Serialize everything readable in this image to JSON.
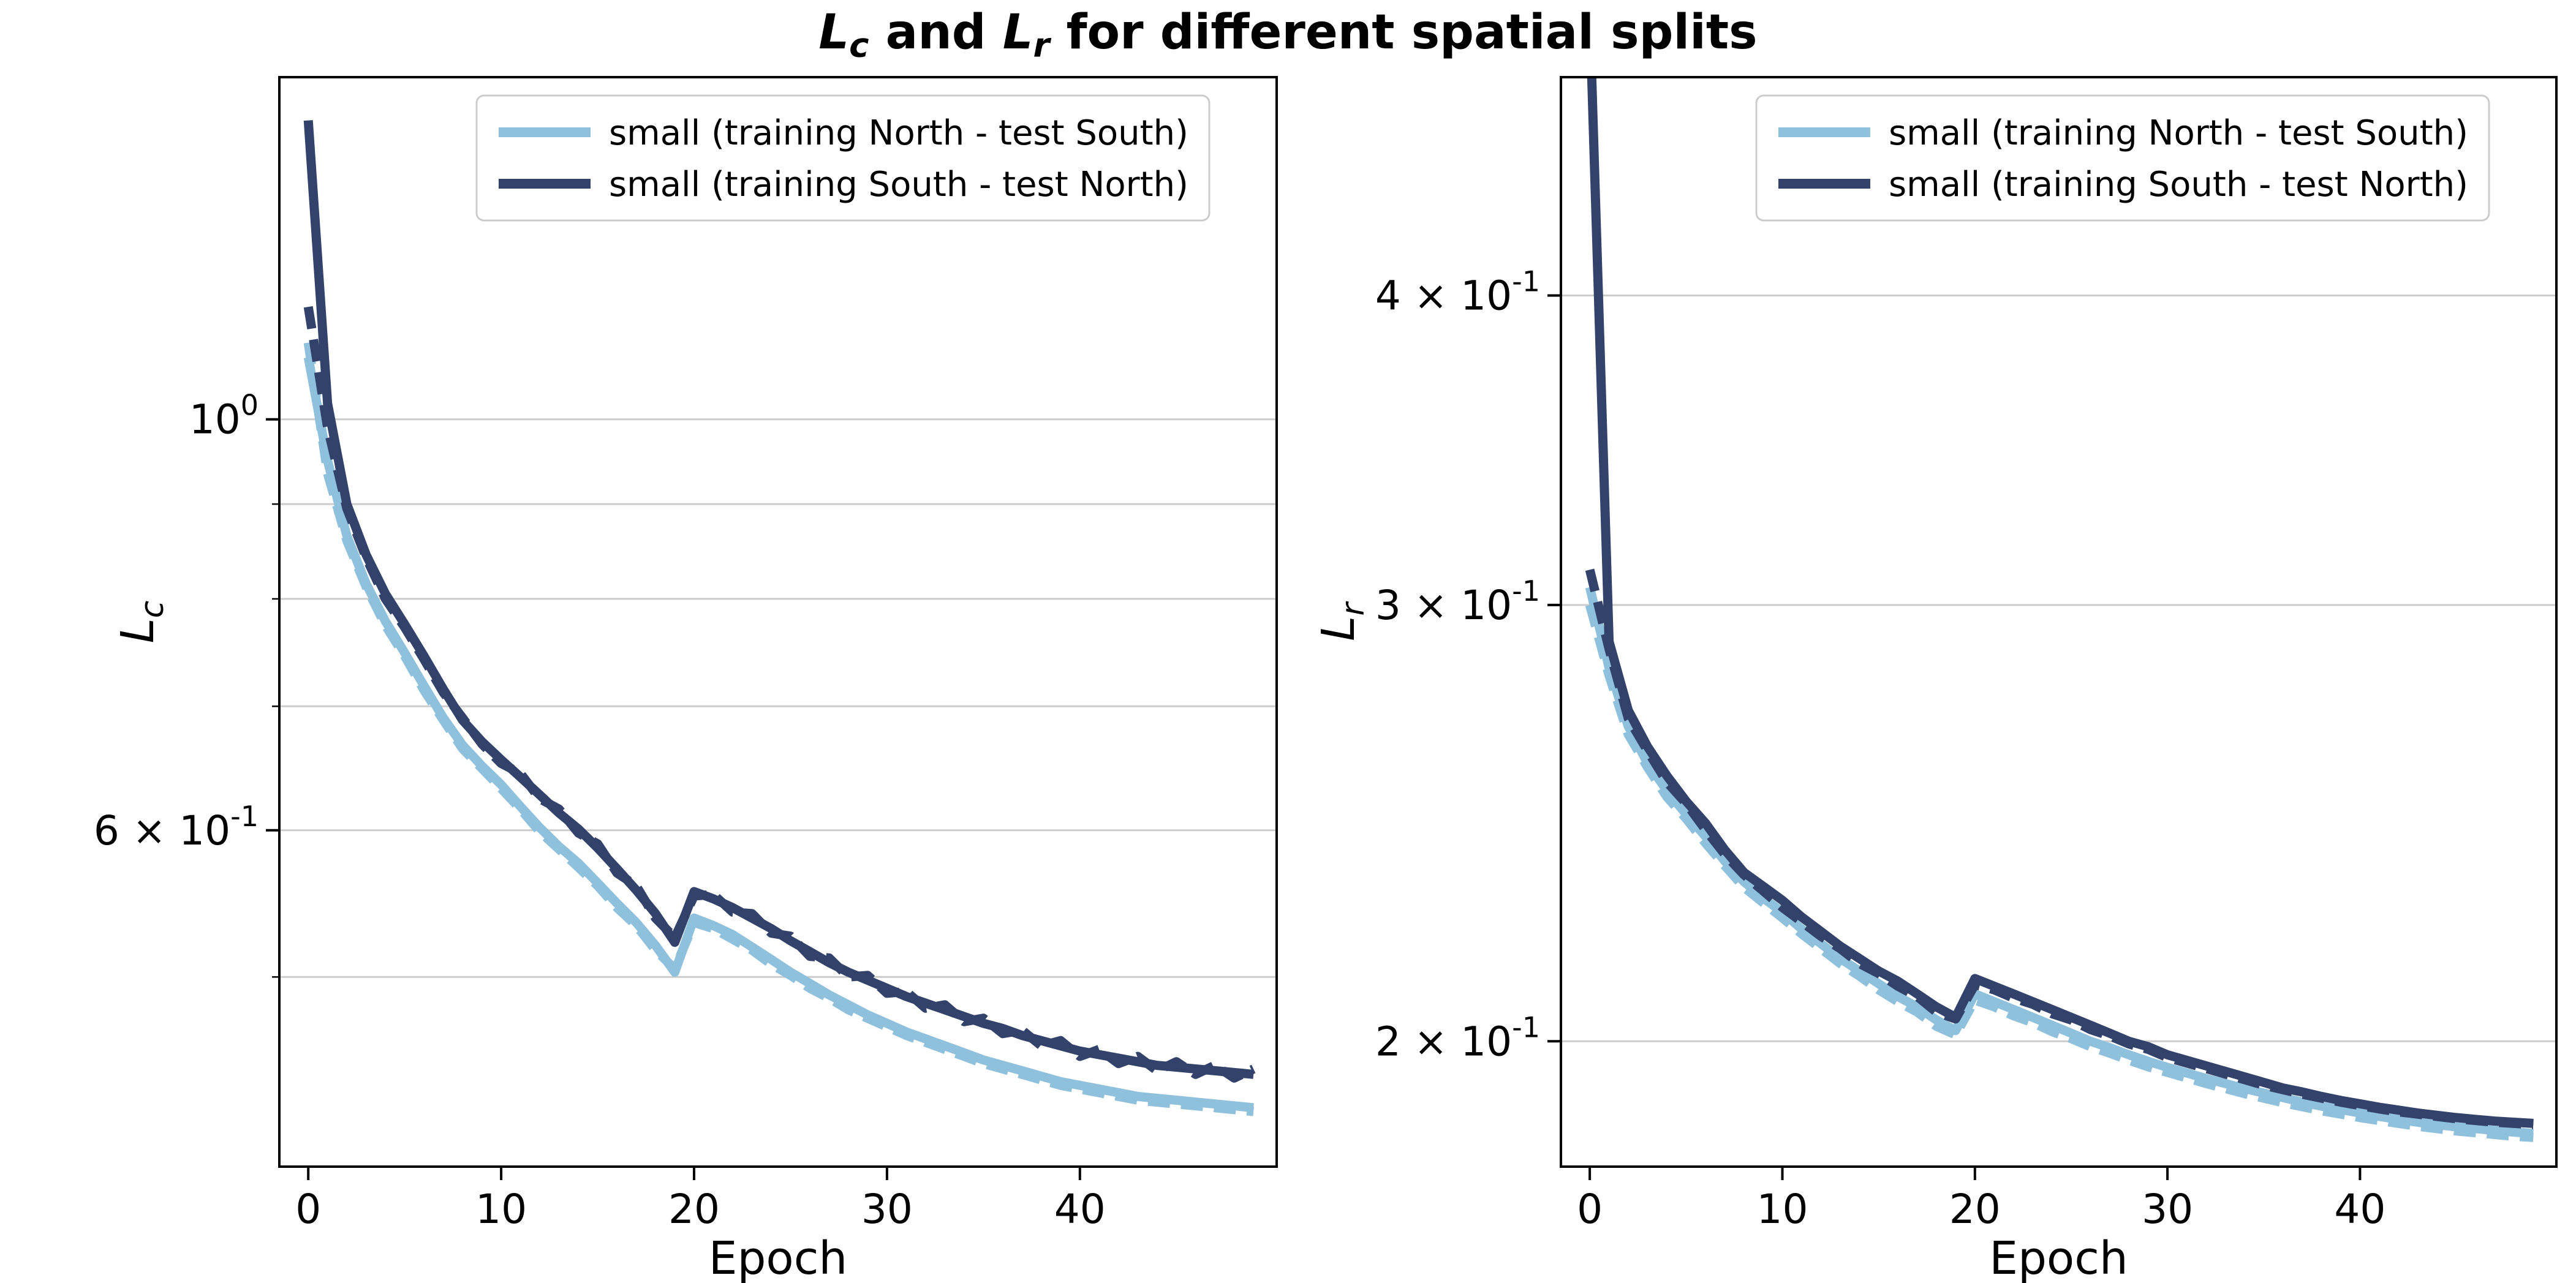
{
  "chart_data": {
    "type": "line",
    "title_segments": [
      {
        "text": "L",
        "style": "italic"
      },
      {
        "text": "c",
        "style": "subscript"
      },
      {
        "text": " and ",
        "style": "normal"
      },
      {
        "text": "L",
        "style": "italic"
      },
      {
        "text": "r",
        "style": "subscript"
      },
      {
        "text": " for different spatial splits",
        "style": "normal"
      }
    ],
    "colors": {
      "light": "#8fc1dc",
      "dark": "#32426b",
      "grid": "#cccccc",
      "spine": "#000000",
      "legend_border": "#cccccc",
      "background": "#ffffff"
    },
    "x_mode": "index-is-epoch",
    "plots": [
      {
        "ylabel": {
          "main": "L",
          "sub": "c"
        },
        "xlabel": "Epoch",
        "xlim": [
          -1.5,
          50.2
        ],
        "ylim": [
          0.395,
          1.53
        ],
        "yscale": "log",
        "x_ticks": [
          0,
          10,
          20,
          30,
          40
        ],
        "y_ticks": [
          {
            "v": 1.0,
            "label": "10^0"
          },
          {
            "v": 0.6,
            "label": "6 × 10^-1"
          }
        ],
        "gridlines": [
          1.0,
          0.9,
          0.8,
          0.7,
          0.6,
          0.5
        ],
        "legend": [
          "small (training North - test South)",
          "small (training South - test North)"
        ],
        "series": [
          {
            "name": "small (training North - test South)",
            "color": "light",
            "style": "solid",
            "values": [
              1.08,
              0.95,
              0.865,
              0.815,
              0.778,
              0.748,
              0.718,
              0.69,
              0.667,
              0.65,
              0.635,
              0.618,
              0.602,
              0.588,
              0.576,
              0.562,
              0.548,
              0.535,
              0.52,
              0.503,
              0.538,
              0.533,
              0.527,
              0.519,
              0.511,
              0.503,
              0.496,
              0.489,
              0.483,
              0.477,
              0.472,
              0.467,
              0.463,
              0.459,
              0.455,
              0.451,
              0.448,
              0.445,
              0.442,
              0.439,
              0.437,
              0.435,
              0.433,
              0.431,
              0.43,
              0.429,
              0.428,
              0.427,
              0.426,
              0.425
            ]
          },
          {
            "name": "small (training North - test South) dashed",
            "color": "light",
            "style": "dashed",
            "values": [
              1.1,
              0.935,
              0.86,
              0.812,
              0.774,
              0.745,
              0.714,
              0.688,
              0.664,
              0.648,
              0.632,
              0.616,
              0.599,
              0.586,
              0.573,
              0.56,
              0.545,
              0.533,
              0.517,
              0.505,
              0.535,
              0.531,
              0.524,
              0.517,
              0.508,
              0.501,
              0.493,
              0.487,
              0.48,
              0.475,
              0.47,
              0.465,
              0.461,
              0.457,
              0.453,
              0.449,
              0.446,
              0.443,
              0.44,
              0.437,
              0.435,
              0.433,
              0.431,
              0.429,
              0.428,
              0.427,
              0.426,
              0.425,
              0.424,
              0.423
            ]
          },
          {
            "name": "small (training South - test North)",
            "color": "dark",
            "style": "solid",
            "values": [
              1.45,
              1.02,
              0.9,
              0.845,
              0.805,
              0.775,
              0.745,
              0.715,
              0.688,
              0.67,
              0.655,
              0.641,
              0.627,
              0.613,
              0.601,
              0.587,
              0.572,
              0.557,
              0.541,
              0.522,
              0.556,
              0.551,
              0.545,
              0.538,
              0.531,
              0.523,
              0.516,
              0.509,
              0.503,
              0.498,
              0.493,
              0.488,
              0.484,
              0.48,
              0.476,
              0.472,
              0.469,
              0.465,
              0.462,
              0.459,
              0.456,
              0.454,
              0.452,
              0.45,
              0.448,
              0.447,
              0.446,
              0.445,
              0.444,
              0.443
            ]
          },
          {
            "name": "small (training South - test North) dashed",
            "color": "dark",
            "style": "dashed",
            "values": [
              1.15,
              0.99,
              0.895,
              0.842,
              0.8,
              0.772,
              0.742,
              0.712,
              0.69,
              0.668,
              0.652,
              0.644,
              0.624,
              0.616,
              0.598,
              0.59,
              0.569,
              0.56,
              0.538,
              0.525,
              0.553,
              0.554,
              0.542,
              0.541,
              0.528,
              0.526,
              0.513,
              0.512,
              0.5,
              0.501,
              0.49,
              0.491,
              0.481,
              0.483,
              0.473,
              0.475,
              0.466,
              0.468,
              0.459,
              0.462,
              0.453,
              0.457,
              0.449,
              0.453,
              0.445,
              0.45,
              0.443,
              0.448,
              0.441,
              0.446
            ]
          }
        ]
      },
      {
        "ylabel": {
          "main": "L",
          "sub": "r"
        },
        "xlabel": "Epoch",
        "xlim": [
          -1.5,
          50.2
        ],
        "ylim": [
          0.178,
          0.49
        ],
        "yscale": "log",
        "x_ticks": [
          0,
          10,
          20,
          30,
          40
        ],
        "y_ticks": [
          {
            "v": 0.4,
            "label": "4 × 10^-1"
          },
          {
            "v": 0.3,
            "label": "3 × 10^-1"
          },
          {
            "v": 0.2,
            "label": "2 × 10^-1"
          }
        ],
        "gridlines": [
          0.4,
          0.3,
          0.2
        ],
        "legend": [
          "small (training North - test South)",
          "small (training South - test North)"
        ],
        "series": [
          {
            "name": "small (training North - test South)",
            "color": "light",
            "style": "solid",
            "values": [
              0.305,
              0.283,
              0.268,
              0.259,
              0.2525,
              0.247,
              0.242,
              0.2365,
              0.232,
              0.2285,
              0.2255,
              0.222,
              0.219,
              0.216,
              0.2135,
              0.211,
              0.2085,
              0.2065,
              0.204,
              0.202,
              0.209,
              0.2075,
              0.206,
              0.2045,
              0.203,
              0.2015,
              0.2,
              0.1988,
              0.1975,
              0.1963,
              0.1952,
              0.1942,
              0.1932,
              0.1923,
              0.1914,
              0.1906,
              0.1898,
              0.189,
              0.1883,
              0.1877,
              0.1871,
              0.1865,
              0.186,
              0.1855,
              0.1851,
              0.1847,
              0.1844,
              0.1841,
              0.1838,
              0.1836
            ]
          },
          {
            "name": "small (training North - test South) dashed",
            "color": "light",
            "style": "dashed",
            "values": [
              0.3,
              0.281,
              0.266,
              0.258,
              0.251,
              0.246,
              0.2405,
              0.2355,
              0.2308,
              0.2275,
              0.2243,
              0.221,
              0.218,
              0.215,
              0.2125,
              0.2098,
              0.2075,
              0.2055,
              0.2028,
              0.2012,
              0.2078,
              0.2065,
              0.2048,
              0.2035,
              0.2018,
              0.2005,
              0.199,
              0.1978,
              0.1965,
              0.1953,
              0.1943,
              0.1933,
              0.1923,
              0.1914,
              0.1905,
              0.1897,
              0.1889,
              0.1882,
              0.1875,
              0.1869,
              0.1863,
              0.1858,
              0.1853,
              0.1848,
              0.1844,
              0.184,
              0.1837,
              0.1834,
              0.1831,
              0.1829
            ]
          },
          {
            "name": "small (training South - test North)",
            "color": "dark",
            "style": "solid",
            "values": [
              0.52,
              0.29,
              0.272,
              0.263,
              0.256,
              0.25,
              0.245,
              0.239,
              0.234,
              0.231,
              0.228,
              0.2245,
              0.2215,
              0.2185,
              0.216,
              0.2135,
              0.2115,
              0.209,
              0.2065,
              0.2045,
              0.212,
              0.2105,
              0.209,
              0.2075,
              0.206,
              0.2045,
              0.203,
              0.2015,
              0.2,
              0.199,
              0.1975,
              0.1965,
              0.1955,
              0.1945,
              0.1935,
              0.1925,
              0.1915,
              0.1908,
              0.19,
              0.1893,
              0.1887,
              0.1881,
              0.1876,
              0.1871,
              0.1867,
              0.1863,
              0.186,
              0.1857,
              0.1855,
              0.1853
            ]
          },
          {
            "name": "small (training South - test North) dashed",
            "color": "dark",
            "style": "dashed",
            "values": [
              0.31,
              0.288,
              0.27,
              0.262,
              0.2545,
              0.2495,
              0.2435,
              0.238,
              0.2335,
              0.23,
              0.2265,
              0.2235,
              0.2205,
              0.218,
              0.215,
              0.213,
              0.2105,
              0.2085,
              0.2055,
              0.2042,
              0.2108,
              0.2098,
              0.2082,
              0.207,
              0.2052,
              0.204,
              0.2022,
              0.201,
              0.1995,
              0.1985,
              0.197,
              0.196,
              0.195,
              0.194,
              0.193,
              0.192,
              0.1912,
              0.1904,
              0.1897,
              0.189,
              0.1884,
              0.1878,
              0.1873,
              0.1869,
              0.1865,
              0.1861,
              0.1858,
              0.1855,
              0.1853,
              0.1851
            ]
          }
        ]
      }
    ]
  }
}
